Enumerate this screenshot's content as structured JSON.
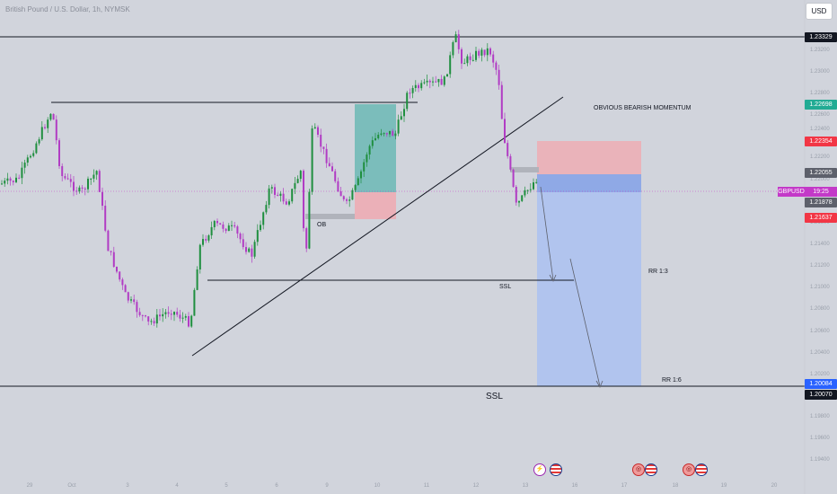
{
  "header": {
    "symbol_title": "British Pound / U.S. Dollar, 1h, NYMSK",
    "currency_button": "USD"
  },
  "annotations": {
    "obvious_bearish_momentum": "OBVIOUS BEARISH MOMENTUM",
    "order_block": "OB",
    "ssl_small": "SSL",
    "ssl_large": "SSL",
    "rr_1_3": "RR 1:3",
    "rr_1_6": "RR 1:6"
  },
  "price_tags": [
    {
      "value": "1.23329",
      "color": "#131722"
    },
    {
      "value": "1.22698",
      "color": "#22ab94"
    },
    {
      "value": "1.22354",
      "color": "#f23645"
    },
    {
      "value": "1.22055",
      "color": "#5d606b"
    },
    {
      "value": "1.21878",
      "color": "#5d606b"
    },
    {
      "value": "1.21637",
      "color": "#f23645"
    },
    {
      "value": "1.20084",
      "color": "#2962ff"
    },
    {
      "value": "1.20070",
      "color": "#131722"
    }
  ],
  "symbol_tag": {
    "symbol": "GBPUSD",
    "countdown": "19:25",
    "color": "#c339c8"
  },
  "price_axis_ticks": [
    "1.23200",
    "1.23000",
    "1.22800",
    "1.22600",
    "1.22400",
    "1.22200",
    "1.22000",
    "1.21600",
    "1.21400",
    "1.21200",
    "1.21000",
    "1.20800",
    "1.20600",
    "1.20400",
    "1.20200",
    "1.19800",
    "1.19600",
    "1.19400"
  ],
  "time_axis_ticks": [
    "29",
    "Oct",
    "3",
    "4",
    "5",
    "6",
    "9",
    "10",
    "11",
    "12",
    "13",
    "16",
    "17",
    "18",
    "19",
    "20"
  ],
  "colors": {
    "background": "#d1d4dc",
    "candle_up": "#1f8f3f",
    "candle_down": "#b13cc4",
    "long_zone": "#26a69a",
    "stop_zone": "#f7a1a8",
    "target_zone": "#a9bff2",
    "entry_zone": "#7e9ee8"
  },
  "chart_data": {
    "type": "candlestick",
    "symbol": "GBPUSD",
    "interval": "1h",
    "y_range": [
      1.194,
      1.234
    ],
    "levels": {
      "top_line": 1.23329,
      "high_tag": 1.22698,
      "stop_loss": 1.22354,
      "entry": 1.22055,
      "current": 1.21878,
      "sell_level": 1.21637,
      "target": 1.20084,
      "bottom_line": 1.2007
    },
    "events": [
      {
        "type": "flash-icon"
      },
      {
        "type": "us-flag-icon"
      },
      {
        "type": "multi-event-icon"
      },
      {
        "type": "us-flag-icon"
      },
      {
        "type": "multi-event-icon"
      },
      {
        "type": "us-flag-icon"
      }
    ]
  }
}
